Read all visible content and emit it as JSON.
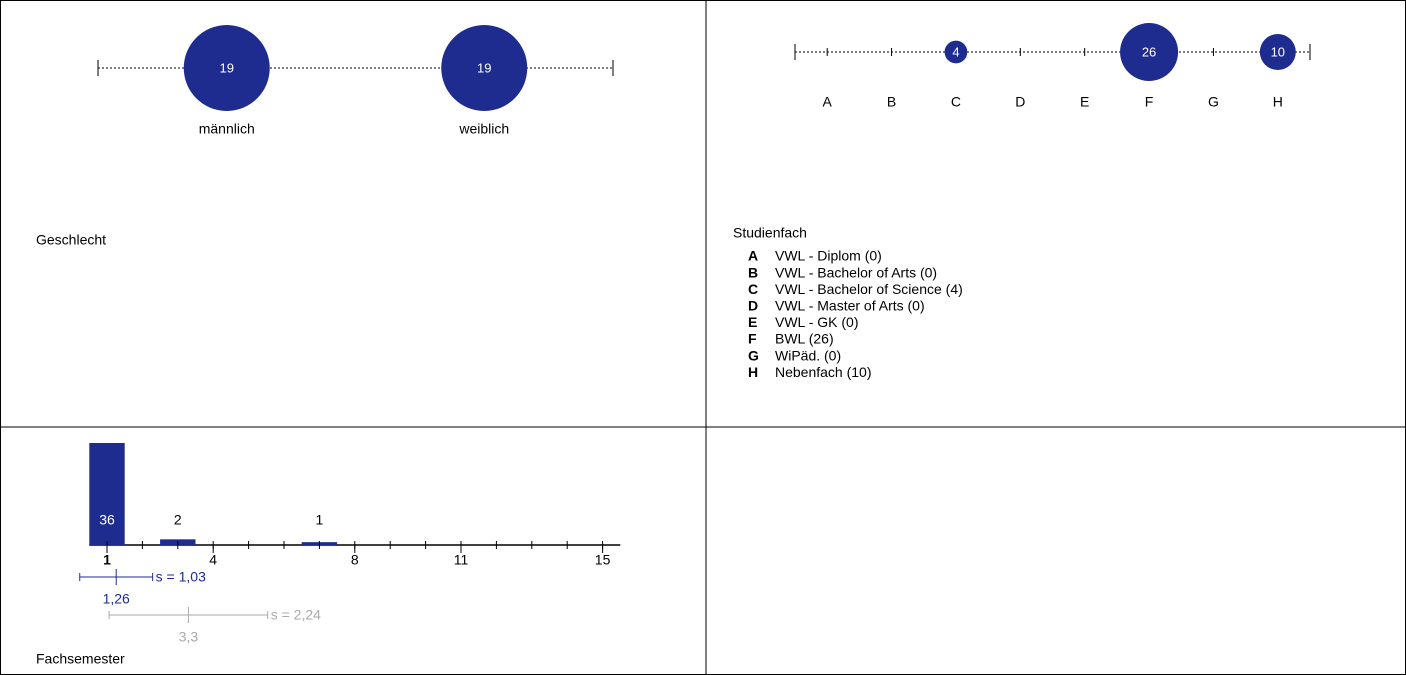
{
  "chart_data": [
    {
      "type": "bubble",
      "title": "Geschlecht",
      "categories": [
        "männlich",
        "weiblich"
      ],
      "values": [
        19,
        19
      ],
      "color": "#1f2c8f"
    },
    {
      "type": "bubble",
      "title": "Studienfach",
      "categories": [
        "A",
        "B",
        "C",
        "D",
        "E",
        "F",
        "G",
        "H"
      ],
      "values": [
        0,
        0,
        4,
        0,
        0,
        26,
        0,
        10
      ],
      "color": "#1f2c8f",
      "legend": [
        "VWL - Diplom (0)",
        "VWL - Bachelor of Arts (0)",
        "VWL - Bachelor of Science (4)",
        "VWL - Master of Arts (0)",
        "VWL - GK (0)",
        "BWL (26)",
        "WiPäd. (0)",
        "Nebenfach (10)"
      ]
    },
    {
      "type": "histogram",
      "title": "Fachsemester",
      "x": [
        1,
        2,
        3,
        4,
        5,
        6,
        7,
        8,
        9,
        10,
        11,
        12,
        13,
        14,
        15
      ],
      "values": [
        36,
        0,
        2,
        0,
        0,
        0,
        1,
        0,
        0,
        0,
        0,
        0,
        0,
        0,
        0
      ],
      "color": "#1f2c8f",
      "xlim": [
        0.5,
        15.5
      ],
      "xticks": [
        1,
        4,
        8,
        11,
        15
      ],
      "stats": [
        {
          "mean": {
            "value": 1.26,
            "label": "1,26"
          },
          "sd": {
            "value": 1.03,
            "label": "s = 1,03"
          },
          "color": "#1f2c8f"
        },
        {
          "mean": {
            "value": 3.3,
            "label": "3,3"
          },
          "sd": {
            "value": 2.24,
            "label": "s = 2,24"
          },
          "color": "#aaaaaa"
        }
      ]
    }
  ]
}
